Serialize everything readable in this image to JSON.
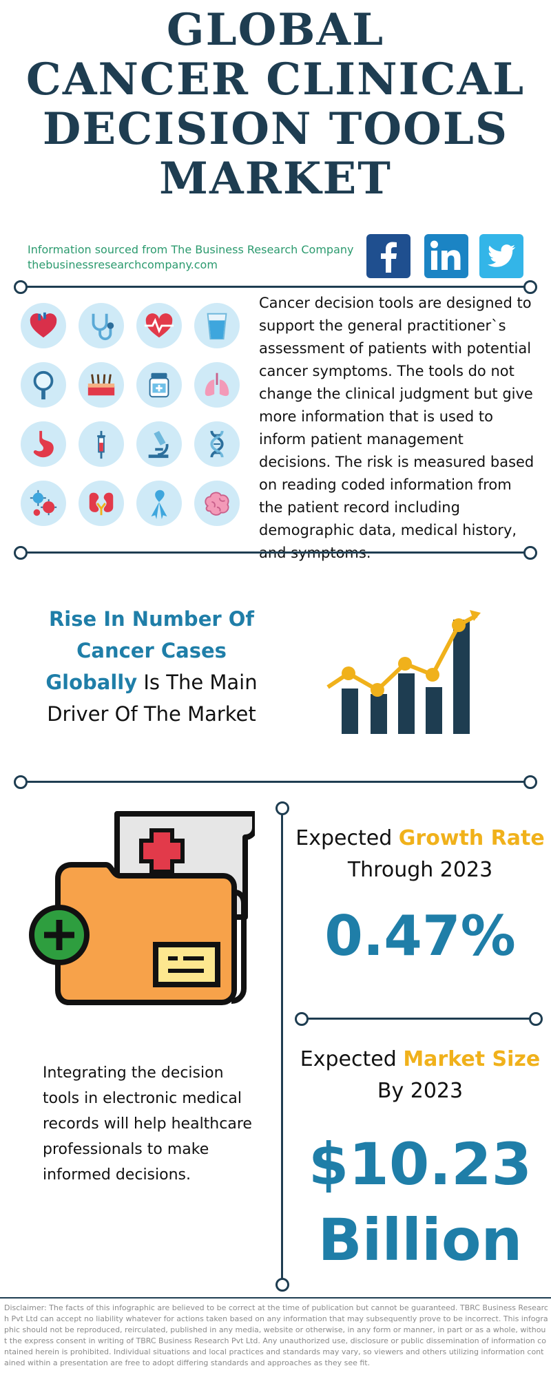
{
  "header": {
    "title_lines": [
      "GLOBAL",
      "CANCER CLINICAL",
      "DECISION TOOLS",
      "MARKET"
    ]
  },
  "source": {
    "line1": "Information sourced from The Business Research Company",
    "line2": "thebusinessresearchcompany.com"
  },
  "social": [
    {
      "name": "facebook-icon",
      "color": "#1f4f8f"
    },
    {
      "name": "linkedin-icon",
      "color": "#1b84c4"
    },
    {
      "name": "twitter-icon",
      "color": "#33b5e8"
    }
  ],
  "intro_text": "Cancer decision tools are designed to support the general practitioner`s assessment of patients with potential cancer symptoms. The tools do not change the clinical judgment but give more information that is used to inform patient management decisions. The risk is measured based on reading coded information from the patient record including demographic data, medical history, and symptoms.",
  "icons": [
    "heart-icon",
    "stethoscope-icon",
    "heartbeat-icon",
    "water-glass-icon",
    "magnifier-icon",
    "skin-hair-icon",
    "medicine-jar-icon",
    "lungs-icon",
    "stomach-icon",
    "syringe-icon",
    "microscope-icon",
    "dna-icon",
    "virus-icon",
    "kidneys-icon",
    "ribbon-icon",
    "brain-icon"
  ],
  "driver": {
    "highlight": "Rise In Number Of Cancer Cases Globally",
    "rest": "Is The Main Driver Of The Market",
    "line1": "Rise In Number Of",
    "line2": "Cancer Cases",
    "line3_hl": "Globally",
    "line3_rest": " Is The Main",
    "line4": "Driver Of The Market"
  },
  "growth": {
    "label_pre": "Expected ",
    "label_hl": "Growth Rate",
    "label_post": "Through 2023",
    "value": "0.47%"
  },
  "market": {
    "label_pre": "Expected ",
    "label_hl": "Market Size",
    "label_post": "By 2023",
    "value_line1": "$10.23",
    "value_line2": "Billion"
  },
  "integrating_text": "Integrating the decision tools in electronic medical records will help healthcare professionals to make informed decisions.",
  "disclaimer": "Disclaimer: The facts of this infographic are believed to be correct at the time of publication but cannot be guaranteed. TBRC Business Research Pvt Ltd can accept no liability whatever for actions taken based on any information that may subsequently prove to be incorrect. This infographic should not be reproduced, reirculated, published in any media, website or otherwise, in any form or manner, in part or as a whole, without the express consent in writing of TBRC Business Research Pvt Ltd. Any unauthorized use, disclosure or public dissemination of information contained herein is prohibited. Individual situations and local practices and standards may vary, so viewers and others utilizing information contained within a presentation are free to adopt differing standards and approaches as they see fit.",
  "colors": {
    "navy": "#1e3d51",
    "blue": "#1f7ea8",
    "gold": "#f0b11b",
    "green": "#2b9a6e"
  }
}
